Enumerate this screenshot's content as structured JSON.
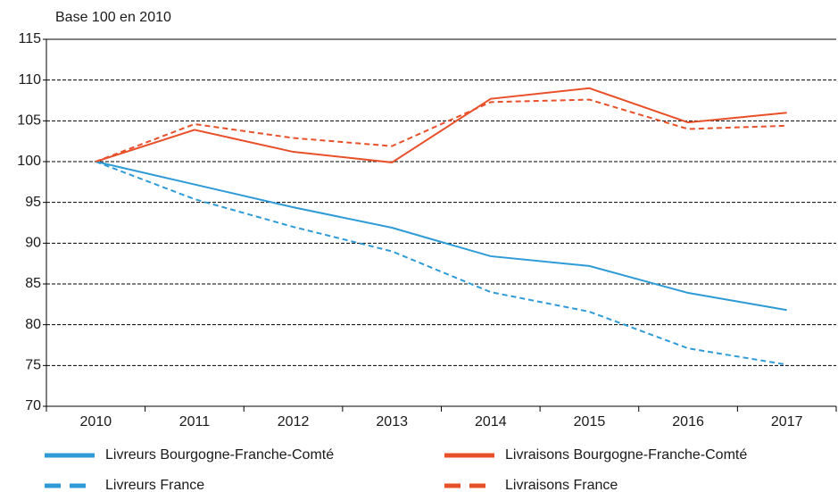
{
  "chart_data": {
    "type": "line",
    "y_label": "Base 100 en 2010",
    "categories": [
      "2010",
      "2011",
      "2012",
      "2013",
      "2014",
      "2015",
      "2016",
      "2017"
    ],
    "series": [
      {
        "name": "Livreurs Bourgogne-Franche-Comté",
        "color": "#2e9bd6",
        "dashed": false,
        "values": [
          100,
          97.2,
          94.4,
          91.9,
          88.4,
          87.2,
          83.9,
          81.8
        ]
      },
      {
        "name": "Livraisons Bourgogne-Franche-Comté",
        "color": "#e8502a",
        "dashed": false,
        "values": [
          100,
          103.9,
          101.2,
          99.9,
          107.7,
          109,
          104.8,
          106
        ]
      },
      {
        "name": "Livreurs France",
        "color": "#2e9bd6",
        "dashed": true,
        "values": [
          100,
          95.4,
          92,
          89,
          84,
          81.6,
          77.1,
          75.1
        ]
      },
      {
        "name": "Livraisons France",
        "color": "#e8502a",
        "dashed": true,
        "values": [
          100,
          104.6,
          102.9,
          101.9,
          107.3,
          107.6,
          104,
          104.4
        ]
      }
    ],
    "ylim": [
      70,
      115
    ],
    "yticks": [
      70,
      75,
      80,
      85,
      90,
      95,
      100,
      105,
      110,
      115
    ],
    "grid": true
  }
}
